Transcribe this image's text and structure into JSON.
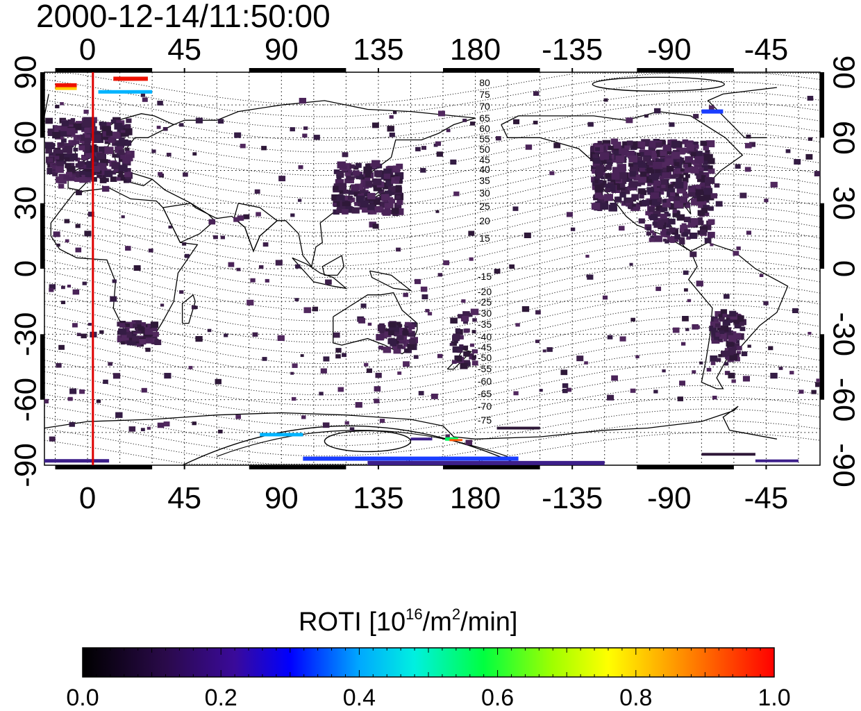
{
  "timestamp": "2000-12-14/11:50:00",
  "map": {
    "top_axis_labels": [
      "0",
      "45",
      "90",
      "135",
      "180",
      "-135",
      "-90",
      "-45"
    ],
    "bottom_axis_labels": [
      "0",
      "45",
      "90",
      "135",
      "180",
      "-135",
      "-90",
      "-45"
    ],
    "left_axis_labels": [
      "90",
      "60",
      "30",
      "0",
      "-30",
      "-60",
      "-90"
    ],
    "right_axis_labels": [
      "90",
      "60",
      "30",
      "0",
      "-30",
      "-60",
      "-90"
    ],
    "contour_labels_north": [
      "80",
      "75",
      "70",
      "65",
      "60",
      "55",
      "50",
      "45",
      "40",
      "35",
      "30",
      "25",
      "20",
      "15"
    ],
    "contour_labels_south": [
      "-15",
      "-20",
      "-25",
      "-30",
      "-35",
      "-40",
      "-45",
      "-50",
      "-55",
      "-60",
      "-65",
      "-70",
      "-75"
    ],
    "terminator_longitude": 2.5,
    "terminator_color": "#dd0000",
    "grid": true
  },
  "colorbar": {
    "title_main": "ROTI  [10",
    "title_sup1": "16",
    "title_mid": "/m",
    "title_sup2": "2",
    "title_end": "/min]",
    "tick_labels": [
      "0.0",
      "0.2",
      "0.4",
      "0.6",
      "0.8",
      "1.0"
    ],
    "range": [
      0.0,
      1.0
    ],
    "colormap": [
      "#000000",
      "#3a0a6a",
      "#0000ff",
      "#00e0ff",
      "#00ff40",
      "#ffff00",
      "#ff0000"
    ]
  },
  "colors": {
    "low_roti": "#3d1f4a",
    "mid_roti": "#4b1a87",
    "patch_blue": "#1a3dff",
    "patch_cyan": "#00b4ff",
    "patch_red": "#ee1100"
  }
}
